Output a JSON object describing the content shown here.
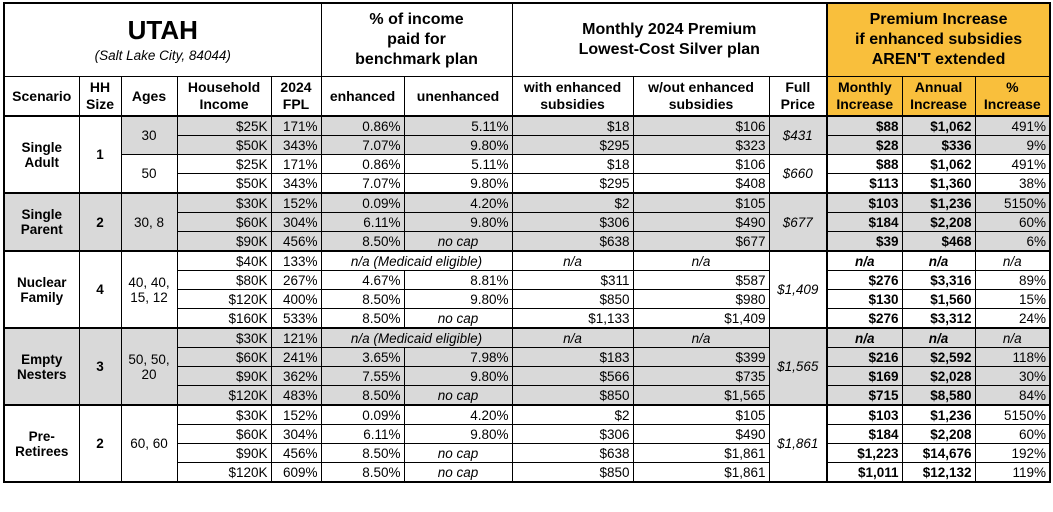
{
  "header": {
    "title": "UTAH",
    "subtitle": "(Salt Lake City, 84044)",
    "income_share": [
      "% of income",
      "paid for",
      "benchmark plan"
    ],
    "premium": [
      "Monthly 2024 Premium",
      "Lowest-Cost Silver plan"
    ],
    "increase": [
      "Premium Increase",
      "if enhanced subsidies",
      "AREN'T extended"
    ]
  },
  "columns": [
    [
      "Scenario"
    ],
    [
      "HH",
      "Size"
    ],
    [
      "Ages"
    ],
    [
      "Household",
      "Income"
    ],
    [
      "2024",
      "FPL"
    ],
    [
      "enhanced"
    ],
    [
      "unenhanced"
    ],
    [
      "with enhanced",
      "subsidies"
    ],
    [
      "w/out enhanced",
      "subsidies"
    ],
    [
      "Full",
      "Price"
    ],
    [
      "Monthly",
      "Increase"
    ],
    [
      "Annual",
      "Increase"
    ],
    [
      "%",
      "Increase"
    ]
  ],
  "groups": [
    {
      "scenario": [
        "Single",
        "Adult"
      ],
      "hh_size": "1",
      "shaded": false,
      "subgroups": [
        {
          "ages": [
            "30"
          ],
          "full_price": "$431",
          "shaded": true,
          "rows": [
            [
              "$25K",
              "171%",
              "0.86%",
              "5.11%",
              "$18",
              "$106",
              "$88",
              "$1,062",
              "491%"
            ],
            [
              "$50K",
              "343%",
              "7.07%",
              "9.80%",
              "$295",
              "$323",
              "$28",
              "$336",
              "9%"
            ]
          ]
        },
        {
          "ages": [
            "50"
          ],
          "full_price": "$660",
          "shaded": false,
          "rows": [
            [
              "$25K",
              "171%",
              "0.86%",
              "5.11%",
              "$18",
              "$106",
              "$88",
              "$1,062",
              "491%"
            ],
            [
              "$50K",
              "343%",
              "7.07%",
              "9.80%",
              "$295",
              "$408",
              "$113",
              "$1,360",
              "38%"
            ]
          ]
        }
      ]
    },
    {
      "scenario": [
        "Single",
        "Parent"
      ],
      "hh_size": "2",
      "shaded": true,
      "subgroups": [
        {
          "ages": [
            "30, 8"
          ],
          "full_price": "$677",
          "shaded": true,
          "rows": [
            [
              "$30K",
              "152%",
              "0.09%",
              "4.20%",
              "$2",
              "$105",
              "$103",
              "$1,236",
              "5150%"
            ],
            [
              "$60K",
              "304%",
              "6.11%",
              "9.80%",
              "$306",
              "$490",
              "$184",
              "$2,208",
              "60%"
            ],
            [
              "$90K",
              "456%",
              "8.50%",
              "no cap",
              "$638",
              "$677",
              "$39",
              "$468",
              "6%"
            ]
          ]
        }
      ]
    },
    {
      "scenario": [
        "Nuclear",
        "Family"
      ],
      "hh_size": "4",
      "shaded": false,
      "subgroups": [
        {
          "ages": [
            "40, 40,",
            "15, 12"
          ],
          "full_price": "$1,409",
          "shaded": false,
          "rows": [
            [
              "$40K",
              "133%",
              "n/a (Medicaid eligible)",
              "n/a",
              "n/a",
              "n/a",
              "n/a",
              "n/a"
            ],
            [
              "$80K",
              "267%",
              "4.67%",
              "8.81%",
              "$311",
              "$587",
              "$276",
              "$3,316",
              "89%"
            ],
            [
              "$120K",
              "400%",
              "8.50%",
              "9.80%",
              "$850",
              "$980",
              "$130",
              "$1,560",
              "15%"
            ],
            [
              "$160K",
              "533%",
              "8.50%",
              "no cap",
              "$1,133",
              "$1,409",
              "$276",
              "$3,312",
              "24%"
            ]
          ]
        }
      ]
    },
    {
      "scenario": [
        "Empty",
        "Nesters"
      ],
      "hh_size": "3",
      "shaded": true,
      "subgroups": [
        {
          "ages": [
            "50, 50,",
            "20"
          ],
          "full_price": "$1,565",
          "shaded": true,
          "rows": [
            [
              "$30K",
              "121%",
              "n/a (Medicaid eligible)",
              "n/a",
              "n/a",
              "n/a",
              "n/a",
              "n/a"
            ],
            [
              "$60K",
              "241%",
              "3.65%",
              "7.98%",
              "$183",
              "$399",
              "$216",
              "$2,592",
              "118%"
            ],
            [
              "$90K",
              "362%",
              "7.55%",
              "9.80%",
              "$566",
              "$735",
              "$169",
              "$2,028",
              "30%"
            ],
            [
              "$120K",
              "483%",
              "8.50%",
              "no cap",
              "$850",
              "$1,565",
              "$715",
              "$8,580",
              "84%"
            ]
          ]
        }
      ]
    },
    {
      "scenario": [
        "Pre-",
        "Retirees"
      ],
      "hh_size": "2",
      "shaded": false,
      "subgroups": [
        {
          "ages": [
            "60, 60"
          ],
          "full_price": "$1,861",
          "shaded": false,
          "rows": [
            [
              "$30K",
              "152%",
              "0.09%",
              "4.20%",
              "$2",
              "$105",
              "$103",
              "$1,236",
              "5150%"
            ],
            [
              "$60K",
              "304%",
              "6.11%",
              "9.80%",
              "$306",
              "$490",
              "$184",
              "$2,208",
              "60%"
            ],
            [
              "$90K",
              "456%",
              "8.50%",
              "no cap",
              "$638",
              "$1,861",
              "$1,223",
              "$14,676",
              "192%"
            ],
            [
              "$120K",
              "609%",
              "8.50%",
              "no cap",
              "$850",
              "$1,861",
              "$1,011",
              "$12,132",
              "119%"
            ]
          ]
        }
      ]
    }
  ]
}
